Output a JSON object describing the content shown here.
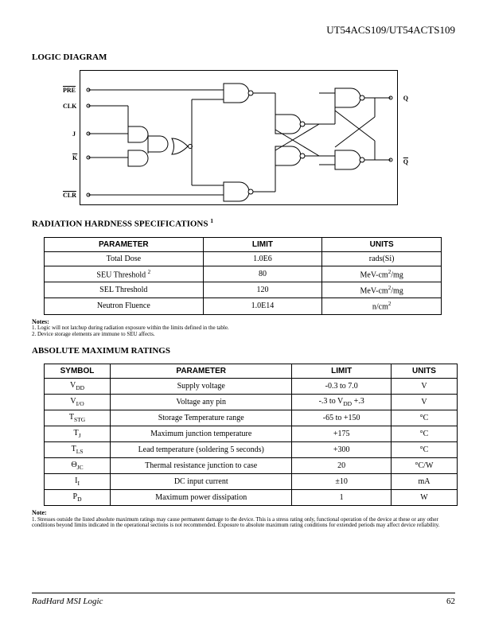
{
  "header": {
    "title": "UT54ACS109/UT54ACTS109"
  },
  "sections": {
    "logic_diagram": "LOGIC DIAGRAM",
    "radiation": "RADIATION HARDNESS SPECIFICATIONS",
    "radiation_sup": "1",
    "abs_max": "ABSOLUTE MAXIMUM RATINGS"
  },
  "diagram": {
    "labels": {
      "pre": "PRE",
      "clk": "CLK",
      "j": "J",
      "k": "K",
      "clr": "CLR",
      "q": "Q",
      "qbar": "Q"
    }
  },
  "radiation_table": {
    "headers": [
      "PARAMETER",
      "LIMIT",
      "UNITS"
    ],
    "rows": [
      {
        "param": "Total Dose",
        "limit": "1.0E6",
        "units": "rads(Si)"
      },
      {
        "param": "SEU Threshold",
        "param_sup": "2",
        "limit": "80",
        "units_html": "MeV-cm<sup>2</sup>/mg"
      },
      {
        "param": "SEL Threshold",
        "limit": "120",
        "units_html": "MeV-cm<sup>2</sup>/mg"
      },
      {
        "param": "Neutron Fluence",
        "limit": "1.0E14",
        "units_html": "n/cm<sup>2</sup>"
      }
    ]
  },
  "radiation_notes": {
    "label": "Notes:",
    "n1": "1. Logic will not latchup during radiation exposure within the limits defined in the table.",
    "n2": "2. Device storage elements are immune to SEU affects."
  },
  "abs_max_table": {
    "headers": [
      "SYMBOL",
      "PARAMETER",
      "LIMIT",
      "UNITS"
    ],
    "rows": [
      {
        "sym_html": "V<sub>DD</sub>",
        "param": "Supply voltage",
        "limit": "-0.3 to 7.0",
        "units": "V"
      },
      {
        "sym_html": "V<sub>I/O</sub>",
        "param": "Voltage any pin",
        "limit_html": "-.3 to V<sub>DD</sub> +.3",
        "units": "V"
      },
      {
        "sym_html": "T<sub>STG</sub>",
        "param": "Storage Temperature range",
        "limit": "-65 to +150",
        "units": "°C"
      },
      {
        "sym_html": "T<sub>J</sub>",
        "param": "Maximum junction temperature",
        "limit": "+175",
        "units": "°C"
      },
      {
        "sym_html": "T<sub>LS</sub>",
        "param": "Lead temperature (soldering 5 seconds)",
        "limit": "+300",
        "units": "°C"
      },
      {
        "sym_html": "Θ<sub>JC</sub>",
        "param": "Thermal resistance junction to case",
        "limit": "20",
        "units": "°C/W"
      },
      {
        "sym_html": "I<sub>I</sub>",
        "param": "DC input current",
        "limit": "±10",
        "units": "mA"
      },
      {
        "sym_html": "P<sub>D</sub>",
        "param": "Maximum power dissipation",
        "limit": "1",
        "units": "W"
      }
    ]
  },
  "abs_max_notes": {
    "label": "Note:",
    "n1": "1. Stresses outside the listed absolute maximum ratings may cause permanent damage to the device. This is a stress rating only, functional operation of the device at these or any other conditions beyond limits indicated in the operational sections is not recommended. Exposure to absolute maximum rating conditions for extended periods may affect device reliability."
  },
  "footer": {
    "left": "RadHard MSI Logic",
    "page": "62"
  }
}
